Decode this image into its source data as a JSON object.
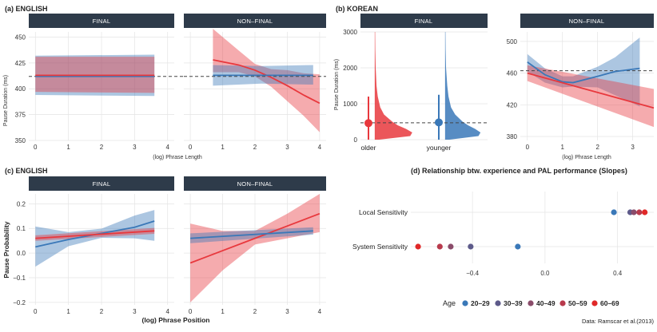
{
  "colors": {
    "blue": "#3a78b8",
    "red": "#e8383d",
    "strip": "#2e3b4a",
    "age": [
      "#3a78b8",
      "#5d5a8a",
      "#8a4c6a",
      "#b83a4c",
      "#e02828"
    ]
  },
  "panel_labels": {
    "a": "(a) ENGLISH",
    "b": "(b) KOREAN",
    "c": "(c) ENGLISH",
    "d": "(d) Relationship btw. experience and PAL performance (Slopes)"
  },
  "strips": {
    "final": "FINAL",
    "nonfinal": "NON–FINAL"
  },
  "source_note": "Data: Ramscar et al.(2013)",
  "chart_data": [
    {
      "id": "a",
      "type": "line",
      "title": "(a) ENGLISH",
      "ylabel": "Pause Duration (ms)",
      "xlabel": "(log) Phrase Length",
      "ylim": [
        350,
        455
      ],
      "xlim": [
        -0.2,
        4.2
      ],
      "yticks": [
        350,
        375,
        400,
        425,
        450
      ],
      "xticks": [
        0,
        1,
        2,
        3,
        4
      ],
      "reference_line": 412,
      "facets": [
        {
          "name": "FINAL",
          "series": [
            {
              "name": "blue",
              "x": [
                0,
                3.6
              ],
              "y": [
                412,
                412
              ],
              "lower": [
                394,
                393
              ],
              "upper": [
                432,
                433
              ]
            },
            {
              "name": "red",
              "x": [
                0,
                3.6
              ],
              "y": [
                413,
                413
              ],
              "lower": [
                397,
                396
              ],
              "upper": [
                431,
                431
              ]
            }
          ]
        },
        {
          "name": "NON–FINAL",
          "series": [
            {
              "name": "red",
              "x": [
                0.7,
                1.5,
                2,
                2.5,
                3,
                3.5,
                4
              ],
              "y": [
                428,
                423,
                418,
                411,
                403,
                394,
                386
              ],
              "lower": [
                416,
                416,
                412,
                402,
                388,
                374,
                358
              ],
              "upper": [
                458,
                437,
                424,
                419,
                418,
                415,
                414
              ]
            },
            {
              "name": "blue",
              "x": [
                0.7,
                2.2,
                3.8
              ],
              "y": [
                413,
                413,
                413
              ],
              "lower": [
                403,
                405,
                404
              ],
              "upper": [
                423,
                422,
                423
              ]
            }
          ]
        }
      ]
    },
    {
      "id": "b",
      "type": "area",
      "title": "(b) KOREAN",
      "facets": [
        {
          "name": "FINAL",
          "ylabel": "Pause Duration (ms)",
          "ylim": [
            0,
            3000
          ],
          "yticks": [
            0,
            1000,
            2000,
            3000
          ],
          "categories": [
            "older",
            "younger"
          ],
          "reference_line": 470,
          "groups": [
            {
              "name": "older",
              "mean": 460,
              "ci": [
                0,
                1200
              ],
              "density_y": [
                0,
                100,
                200,
                300,
                400,
                500,
                700,
                900,
                1200,
                1500,
                2000,
                2500,
                3000
              ],
              "density": [
                0.1,
                0.85,
                0.9,
                0.75,
                0.55,
                0.42,
                0.22,
                0.13,
                0.07,
                0.04,
                0.02,
                0.01,
                0.005
              ]
            },
            {
              "name": "younger",
              "mean": 480,
              "ci": [
                0,
                1250
              ],
              "density_y": [
                0,
                100,
                200,
                300,
                400,
                500,
                700,
                900,
                1200,
                1500,
                2000,
                2500,
                3000
              ],
              "density": [
                0.1,
                0.8,
                0.85,
                0.72,
                0.55,
                0.42,
                0.24,
                0.14,
                0.08,
                0.05,
                0.02,
                0.01,
                0.005
              ]
            }
          ]
        },
        {
          "name": "NON–FINAL",
          "type": "line",
          "ylabel": "",
          "xlabel": "(log) Phrase Length",
          "ylim": [
            375,
            512
          ],
          "yticks": [
            380,
            420,
            460,
            500
          ],
          "xlim": [
            -0.2,
            3.6
          ],
          "xticks": [
            0,
            1,
            2,
            3
          ],
          "reference_line": 463,
          "series": [
            {
              "name": "blue",
              "x": [
                0,
                0.5,
                1,
                1.3,
                2,
                2.5,
                3.2
              ],
              "y": [
                474,
                458,
                449,
                448,
                456,
                462,
                466
              ],
              "lower": [
                462,
                448,
                442,
                443,
                442,
                432,
                418
              ],
              "upper": [
                484,
                466,
                456,
                456,
                468,
                480,
                505
              ]
            },
            {
              "name": "red",
              "x": [
                0,
                3.6
              ],
              "y": [
                460,
                416
              ],
              "lower": [
                450,
                392
              ],
              "upper": [
                470,
                440
              ]
            }
          ]
        }
      ]
    },
    {
      "id": "c",
      "type": "line",
      "title": "(c) ENGLISH",
      "ylabel": "Pause Probability",
      "xlabel": "(log) Phrase Position",
      "ylim": [
        -0.21,
        0.24
      ],
      "yticks": [
        -0.2,
        -0.1,
        0.0,
        0.1,
        0.2
      ],
      "ytick_labels": [
        "−0.2",
        "−0.1",
        "0.0",
        "0.1",
        "0.2"
      ],
      "xlim": [
        -0.2,
        4.2
      ],
      "xticks": [
        0,
        1,
        2,
        3,
        4
      ],
      "facets": [
        {
          "name": "FINAL",
          "series": [
            {
              "name": "blue",
              "x": [
                0,
                1,
                2,
                3,
                3.6
              ],
              "y": [
                0.025,
                0.055,
                0.08,
                0.105,
                0.13
              ],
              "lower": [
                -0.055,
                0.028,
                0.062,
                0.06,
                0.05
              ],
              "upper": [
                0.108,
                0.085,
                0.099,
                0.152,
                0.175
              ]
            },
            {
              "name": "red",
              "x": [
                0,
                3.6
              ],
              "y": [
                0.06,
                0.09
              ],
              "lower": [
                0.05,
                0.078
              ],
              "upper": [
                0.072,
                0.102
              ]
            }
          ]
        },
        {
          "name": "NON–FINAL",
          "series": [
            {
              "name": "red",
              "x": [
                0,
                1,
                2,
                3,
                4
              ],
              "y": [
                -0.04,
                0.01,
                0.06,
                0.11,
                0.16
              ],
              "lower": [
                -0.2,
                -0.07,
                0.035,
                0.06,
                0.085
              ],
              "upper": [
                0.12,
                0.09,
                0.09,
                0.16,
                0.24
              ]
            },
            {
              "name": "blue",
              "x": [
                0,
                3.8
              ],
              "y": [
                0.06,
                0.09
              ],
              "lower": [
                0.04,
                0.075
              ],
              "upper": [
                0.08,
                0.105
              ]
            }
          ]
        }
      ]
    },
    {
      "id": "d",
      "type": "scatter",
      "title": "(d) Relationship btw. experience and PAL performance (Slopes)",
      "xlim": [
        -0.74,
        0.6
      ],
      "xticks": [
        -0.4,
        0.0,
        0.4
      ],
      "xtick_labels": [
        "−0.4",
        "0.0",
        "0.4"
      ],
      "categories": [
        "Local Sensitivity",
        "System Sensitivity"
      ],
      "legend_title": "Age",
      "legend": [
        "20–29",
        "30–39",
        "40–49",
        "50–59",
        "60–69"
      ],
      "series": [
        {
          "name": "20–29",
          "values": [
            0.38,
            -0.15
          ]
        },
        {
          "name": "30–39",
          "values": [
            0.47,
            -0.41
          ]
        },
        {
          "name": "40–49",
          "values": [
            0.49,
            -0.52
          ]
        },
        {
          "name": "50–59",
          "values": [
            0.52,
            -0.58
          ]
        },
        {
          "name": "60–69",
          "values": [
            0.55,
            -0.7
          ]
        }
      ]
    }
  ]
}
